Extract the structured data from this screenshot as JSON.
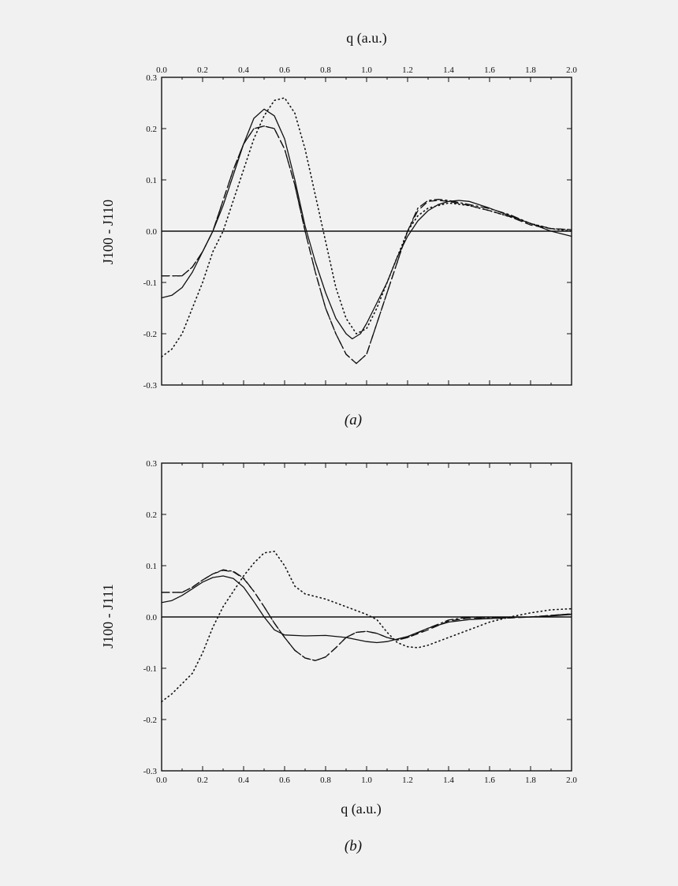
{
  "figure": {
    "top_axis_label": "q (a.u.)",
    "bottom_axis_label": "q (a.u.)"
  },
  "chart_data": [
    {
      "type": "line",
      "panel_label": "(a)",
      "xlabel": "q (a.u.)",
      "ylabel": "J100 - J110",
      "xlim": [
        0.0,
        2.0
      ],
      "ylim": [
        -0.3,
        0.3
      ],
      "x_tick_labels": [
        "0.0",
        "0.2",
        "0.4",
        "0.6",
        "0.8",
        "1.0",
        "1.2",
        "1.4",
        "1.6",
        "1.8",
        "2.0"
      ],
      "y_tick_labels": [
        "0.3",
        "0.2",
        "0.1",
        "0.0",
        "-0.1",
        "-0.2",
        "-0.3"
      ],
      "x_axis_position": "top",
      "grid": false,
      "series": [
        {
          "style": "solid",
          "points": [
            [
              0.0,
              -0.13
            ],
            [
              0.05,
              -0.125
            ],
            [
              0.1,
              -0.11
            ],
            [
              0.15,
              -0.08
            ],
            [
              0.2,
              -0.04
            ],
            [
              0.25,
              0.0
            ],
            [
              0.3,
              0.05
            ],
            [
              0.35,
              0.11
            ],
            [
              0.4,
              0.17
            ],
            [
              0.45,
              0.22
            ],
            [
              0.5,
              0.238
            ],
            [
              0.55,
              0.225
            ],
            [
              0.6,
              0.18
            ],
            [
              0.65,
              0.1
            ],
            [
              0.7,
              0.01
            ],
            [
              0.75,
              -0.06
            ],
            [
              0.8,
              -0.12
            ],
            [
              0.85,
              -0.17
            ],
            [
              0.9,
              -0.2
            ],
            [
              0.93,
              -0.21
            ],
            [
              0.97,
              -0.2
            ],
            [
              1.0,
              -0.18
            ],
            [
              1.05,
              -0.14
            ],
            [
              1.1,
              -0.1
            ],
            [
              1.15,
              -0.05
            ],
            [
              1.2,
              -0.01
            ],
            [
              1.25,
              0.02
            ],
            [
              1.3,
              0.04
            ],
            [
              1.35,
              0.052
            ],
            [
              1.4,
              0.058
            ],
            [
              1.45,
              0.06
            ],
            [
              1.5,
              0.058
            ],
            [
              1.6,
              0.045
            ],
            [
              1.7,
              0.03
            ],
            [
              1.8,
              0.015
            ],
            [
              1.9,
              0.0
            ],
            [
              2.0,
              -0.01
            ]
          ]
        },
        {
          "style": "dashed",
          "points": [
            [
              0.0,
              -0.087
            ],
            [
              0.1,
              -0.087
            ],
            [
              0.15,
              -0.07
            ],
            [
              0.2,
              -0.04
            ],
            [
              0.25,
              0.0
            ],
            [
              0.3,
              0.06
            ],
            [
              0.35,
              0.12
            ],
            [
              0.4,
              0.17
            ],
            [
              0.45,
              0.2
            ],
            [
              0.5,
              0.205
            ],
            [
              0.55,
              0.2
            ],
            [
              0.6,
              0.16
            ],
            [
              0.65,
              0.09
            ],
            [
              0.7,
              0.0
            ],
            [
              0.75,
              -0.08
            ],
            [
              0.8,
              -0.15
            ],
            [
              0.85,
              -0.2
            ],
            [
              0.9,
              -0.24
            ],
            [
              0.95,
              -0.258
            ],
            [
              1.0,
              -0.24
            ],
            [
              1.05,
              -0.18
            ],
            [
              1.1,
              -0.12
            ],
            [
              1.15,
              -0.06
            ],
            [
              1.2,
              0.0
            ],
            [
              1.25,
              0.04
            ],
            [
              1.3,
              0.058
            ],
            [
              1.35,
              0.06
            ],
            [
              1.4,
              0.058
            ],
            [
              1.5,
              0.05
            ],
            [
              1.6,
              0.04
            ],
            [
              1.7,
              0.028
            ],
            [
              1.8,
              0.012
            ],
            [
              1.9,
              0.005
            ],
            [
              2.0,
              0.003
            ]
          ]
        },
        {
          "style": "dashdot",
          "points": [
            [
              0.0,
              -0.087
            ],
            [
              0.1,
              -0.087
            ],
            [
              0.15,
              -0.07
            ],
            [
              0.2,
              -0.04
            ],
            [
              0.25,
              0.0
            ],
            [
              0.3,
              0.06
            ],
            [
              0.35,
              0.12
            ],
            [
              0.4,
              0.17
            ],
            [
              0.45,
              0.2
            ],
            [
              0.5,
              0.205
            ],
            [
              0.55,
              0.2
            ],
            [
              0.6,
              0.16
            ],
            [
              0.65,
              0.09
            ],
            [
              0.7,
              0.0
            ],
            [
              0.75,
              -0.08
            ],
            [
              0.8,
              -0.15
            ],
            [
              0.85,
              -0.2
            ],
            [
              0.9,
              -0.24
            ],
            [
              0.95,
              -0.258
            ],
            [
              1.0,
              -0.24
            ],
            [
              1.05,
              -0.18
            ],
            [
              1.1,
              -0.12
            ],
            [
              1.15,
              -0.06
            ],
            [
              1.2,
              0.0
            ],
            [
              1.25,
              0.045
            ],
            [
              1.3,
              0.06
            ],
            [
              1.35,
              0.062
            ],
            [
              1.4,
              0.06
            ],
            [
              1.5,
              0.052
            ],
            [
              1.6,
              0.044
            ],
            [
              1.7,
              0.032
            ],
            [
              1.8,
              0.015
            ],
            [
              1.9,
              0.005
            ],
            [
              2.0,
              0.003
            ]
          ]
        },
        {
          "style": "dotted",
          "points": [
            [
              0.0,
              -0.245
            ],
            [
              0.05,
              -0.23
            ],
            [
              0.1,
              -0.2
            ],
            [
              0.15,
              -0.15
            ],
            [
              0.2,
              -0.1
            ],
            [
              0.25,
              -0.04
            ],
            [
              0.3,
              0.0
            ],
            [
              0.35,
              0.06
            ],
            [
              0.4,
              0.12
            ],
            [
              0.45,
              0.18
            ],
            [
              0.5,
              0.225
            ],
            [
              0.55,
              0.255
            ],
            [
              0.6,
              0.26
            ],
            [
              0.65,
              0.23
            ],
            [
              0.7,
              0.16
            ],
            [
              0.75,
              0.07
            ],
            [
              0.8,
              -0.02
            ],
            [
              0.85,
              -0.11
            ],
            [
              0.9,
              -0.17
            ],
            [
              0.95,
              -0.2
            ],
            [
              1.0,
              -0.19
            ],
            [
              1.05,
              -0.15
            ],
            [
              1.1,
              -0.1
            ],
            [
              1.15,
              -0.05
            ],
            [
              1.2,
              0.0
            ],
            [
              1.25,
              0.03
            ],
            [
              1.3,
              0.045
            ],
            [
              1.4,
              0.055
            ],
            [
              1.5,
              0.05
            ],
            [
              1.6,
              0.04
            ],
            [
              1.7,
              0.028
            ],
            [
              1.8,
              0.015
            ],
            [
              1.9,
              0.005
            ],
            [
              2.0,
              0.0
            ]
          ]
        }
      ]
    },
    {
      "type": "line",
      "panel_label": "(b)",
      "xlabel": "q (a.u.)",
      "ylabel": "J100 - J111",
      "xlim": [
        0.0,
        2.0
      ],
      "ylim": [
        -0.3,
        0.3
      ],
      "x_tick_labels": [
        "0.0",
        "0.2",
        "0.4",
        "0.6",
        "0.8",
        "1.0",
        "1.2",
        "1.4",
        "1.6",
        "1.8",
        "2.0"
      ],
      "y_tick_labels": [
        "0.3",
        "0.2",
        "0.1",
        "0.0",
        "-0.1",
        "-0.2",
        "-0.3"
      ],
      "x_axis_position": "bottom",
      "grid": false,
      "series": [
        {
          "style": "solid",
          "points": [
            [
              0.0,
              0.028
            ],
            [
              0.05,
              0.032
            ],
            [
              0.1,
              0.042
            ],
            [
              0.15,
              0.055
            ],
            [
              0.2,
              0.068
            ],
            [
              0.25,
              0.077
            ],
            [
              0.3,
              0.08
            ],
            [
              0.35,
              0.075
            ],
            [
              0.4,
              0.058
            ],
            [
              0.45,
              0.03
            ],
            [
              0.5,
              0.0
            ],
            [
              0.55,
              -0.025
            ],
            [
              0.6,
              -0.035
            ],
            [
              0.7,
              -0.037
            ],
            [
              0.8,
              -0.036
            ],
            [
              0.9,
              -0.04
            ],
            [
              1.0,
              -0.048
            ],
            [
              1.05,
              -0.05
            ],
            [
              1.1,
              -0.048
            ],
            [
              1.2,
              -0.038
            ],
            [
              1.3,
              -0.022
            ],
            [
              1.4,
              -0.01
            ],
            [
              1.5,
              -0.005
            ],
            [
              1.6,
              -0.003
            ],
            [
              1.7,
              -0.001
            ],
            [
              1.8,
              0.0
            ],
            [
              1.9,
              0.002
            ],
            [
              2.0,
              0.005
            ]
          ]
        },
        {
          "style": "dashed",
          "points": [
            [
              0.0,
              0.048
            ],
            [
              0.1,
              0.048
            ],
            [
              0.15,
              0.058
            ],
            [
              0.2,
              0.072
            ],
            [
              0.25,
              0.084
            ],
            [
              0.3,
              0.091
            ],
            [
              0.35,
              0.088
            ],
            [
              0.4,
              0.075
            ],
            [
              0.45,
              0.05
            ],
            [
              0.5,
              0.02
            ],
            [
              0.55,
              -0.012
            ],
            [
              0.6,
              -0.04
            ],
            [
              0.65,
              -0.065
            ],
            [
              0.7,
              -0.08
            ],
            [
              0.75,
              -0.085
            ],
            [
              0.8,
              -0.078
            ],
            [
              0.85,
              -0.06
            ],
            [
              0.9,
              -0.04
            ],
            [
              0.95,
              -0.03
            ],
            [
              1.0,
              -0.028
            ],
            [
              1.05,
              -0.032
            ],
            [
              1.1,
              -0.04
            ],
            [
              1.15,
              -0.045
            ],
            [
              1.2,
              -0.04
            ],
            [
              1.3,
              -0.025
            ],
            [
              1.4,
              -0.008
            ],
            [
              1.5,
              -0.002
            ],
            [
              1.6,
              -0.003
            ],
            [
              1.7,
              -0.002
            ],
            [
              1.8,
              0.0
            ],
            [
              1.9,
              0.003
            ],
            [
              2.0,
              0.006
            ]
          ]
        },
        {
          "style": "dashdot",
          "points": [
            [
              0.0,
              0.048
            ],
            [
              0.1,
              0.048
            ],
            [
              0.15,
              0.058
            ],
            [
              0.2,
              0.072
            ],
            [
              0.25,
              0.084
            ],
            [
              0.3,
              0.092
            ],
            [
              0.35,
              0.089
            ],
            [
              0.4,
              0.076
            ],
            [
              0.45,
              0.05
            ],
            [
              0.5,
              0.02
            ],
            [
              0.55,
              -0.012
            ],
            [
              0.6,
              -0.04
            ],
            [
              0.65,
              -0.065
            ],
            [
              0.7,
              -0.08
            ],
            [
              0.75,
              -0.085
            ],
            [
              0.8,
              -0.078
            ],
            [
              0.85,
              -0.06
            ],
            [
              0.9,
              -0.04
            ],
            [
              0.95,
              -0.03
            ],
            [
              1.0,
              -0.028
            ],
            [
              1.05,
              -0.032
            ],
            [
              1.1,
              -0.04
            ],
            [
              1.15,
              -0.045
            ],
            [
              1.2,
              -0.04
            ],
            [
              1.3,
              -0.022
            ],
            [
              1.4,
              -0.006
            ],
            [
              1.5,
              0.0
            ],
            [
              1.6,
              -0.002
            ],
            [
              1.7,
              -0.001
            ],
            [
              1.8,
              0.0
            ],
            [
              1.9,
              0.003
            ],
            [
              2.0,
              0.006
            ]
          ]
        },
        {
          "style": "dotted",
          "points": [
            [
              0.0,
              -0.165
            ],
            [
              0.05,
              -0.15
            ],
            [
              0.1,
              -0.13
            ],
            [
              0.15,
              -0.11
            ],
            [
              0.2,
              -0.07
            ],
            [
              0.25,
              -0.02
            ],
            [
              0.3,
              0.02
            ],
            [
              0.35,
              0.05
            ],
            [
              0.4,
              0.08
            ],
            [
              0.45,
              0.105
            ],
            [
              0.5,
              0.125
            ],
            [
              0.55,
              0.128
            ],
            [
              0.6,
              0.1
            ],
            [
              0.65,
              0.06
            ],
            [
              0.7,
              0.045
            ],
            [
              0.8,
              0.035
            ],
            [
              0.9,
              0.02
            ],
            [
              1.0,
              0.005
            ],
            [
              1.05,
              -0.005
            ],
            [
              1.1,
              -0.03
            ],
            [
              1.15,
              -0.05
            ],
            [
              1.2,
              -0.058
            ],
            [
              1.25,
              -0.06
            ],
            [
              1.3,
              -0.055
            ],
            [
              1.4,
              -0.04
            ],
            [
              1.5,
              -0.025
            ],
            [
              1.6,
              -0.01
            ],
            [
              1.7,
              0.0
            ],
            [
              1.8,
              0.008
            ],
            [
              1.9,
              0.014
            ],
            [
              2.0,
              0.016
            ]
          ]
        }
      ]
    }
  ]
}
